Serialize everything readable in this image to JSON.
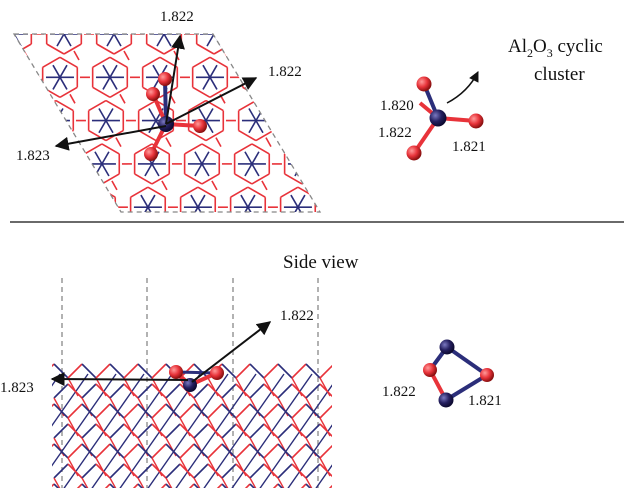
{
  "top_view": {
    "labels": {
      "top": "1.822",
      "right": "1.822",
      "left": "1.823"
    }
  },
  "cluster": {
    "title": {
      "a": "Al",
      "a_sub": "2",
      "b": "O",
      "b_sub": "3",
      "c": " cyclic",
      "line2": "cluster"
    },
    "labels": {
      "l1": "1.820",
      "l2": "1.822",
      "l3": "1.821"
    }
  },
  "side_view": {
    "title": "Side view",
    "labels": {
      "right": "1.822",
      "left": "1.823"
    },
    "cluster_labels": {
      "l1": "1.822",
      "l2": "1.821"
    }
  },
  "colors": {
    "oxygen": "#e8333a",
    "aluminum": "#252060",
    "bond_red": "#e8333a",
    "bond_blue": "#2b2e7a",
    "dashed": "#888888"
  }
}
